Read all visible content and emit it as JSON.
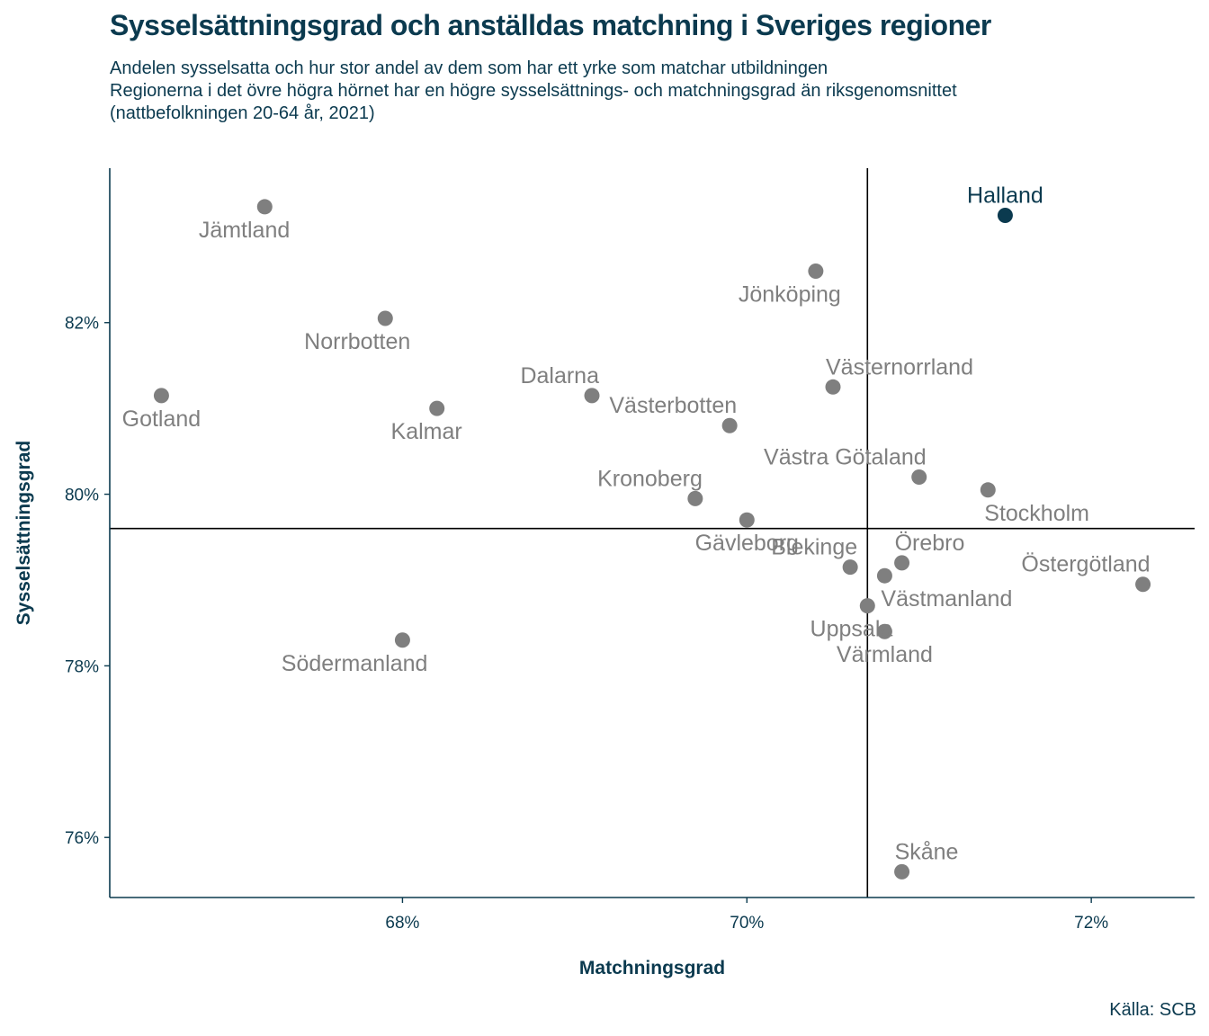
{
  "header": {
    "title": "Sysselsättningsgrad och anställdas matchning i Sveriges regioner",
    "subtitle_lines": [
      "Andelen sysselsatta och hur stor andel av dem som har ett yrke som matchar utbildningen",
      "Regionerna i det övre högra hörnet har en högre sysselsättnings- och matchningsgrad än riksgenomsnittet",
      "(nattbefolkningen 20-64 år, 2021)"
    ]
  },
  "caption": "Källa: SCB",
  "colors": {
    "text": "#0b3a4f",
    "point": "#7f7f7f",
    "highlight": "#0b3a4f",
    "reference_line": "#000000"
  },
  "chart_data": {
    "type": "scatter",
    "title": "Sysselsättningsgrad och anställdas matchning i Sveriges regioner",
    "xlabel": "Matchningsgrad",
    "ylabel": "Sysselsättningsgrad",
    "xlim": [
      66.3,
      72.6
    ],
    "ylim": [
      75.3,
      83.8
    ],
    "x_ticks": [
      68,
      70,
      72
    ],
    "y_ticks": [
      76,
      78,
      80,
      82
    ],
    "x_tick_labels": [
      "68%",
      "70%",
      "72%"
    ],
    "y_tick_labels": [
      "76%",
      "78%",
      "80%",
      "82%"
    ],
    "reference_lines": {
      "x": 70.7,
      "y": 79.6
    },
    "highlight": "Halland",
    "points": [
      {
        "name": "Halland",
        "x": 71.5,
        "y": 83.25,
        "label_pos": "above"
      },
      {
        "name": "Jämtland",
        "x": 67.2,
        "y": 83.35,
        "label_pos": "below-left"
      },
      {
        "name": "Jönköping",
        "x": 70.4,
        "y": 82.6,
        "label_pos": "below-left"
      },
      {
        "name": "Norrbotten",
        "x": 67.9,
        "y": 82.05,
        "label_pos": "below-left"
      },
      {
        "name": "Gotland",
        "x": 66.6,
        "y": 81.15,
        "label_pos": "below"
      },
      {
        "name": "Dalarna",
        "x": 69.1,
        "y": 81.15,
        "label_pos": "above-left"
      },
      {
        "name": "Västernorrland",
        "x": 70.5,
        "y": 81.25,
        "label_pos": "above-right"
      },
      {
        "name": "Kalmar",
        "x": 68.2,
        "y": 81.0,
        "label_pos": "below-left"
      },
      {
        "name": "Västerbotten",
        "x": 69.9,
        "y": 80.8,
        "label_pos": "above-left"
      },
      {
        "name": "Västra Götaland",
        "x": 71.0,
        "y": 80.2,
        "label_pos": "above-left"
      },
      {
        "name": "Stockholm",
        "x": 71.4,
        "y": 80.05,
        "label_pos": "below-right"
      },
      {
        "name": "Kronoberg",
        "x": 69.7,
        "y": 79.95,
        "label_pos": "above-left"
      },
      {
        "name": "Gävleborg",
        "x": 70.0,
        "y": 79.7,
        "label_pos": "below"
      },
      {
        "name": "Örebro",
        "x": 70.9,
        "y": 79.2,
        "label_pos": "above-right"
      },
      {
        "name": "Blekinge",
        "x": 70.6,
        "y": 79.15,
        "label_pos": "above-left"
      },
      {
        "name": "Västmanland",
        "x": 70.8,
        "y": 79.05,
        "label_pos": "below-right"
      },
      {
        "name": "Östergötland",
        "x": 72.3,
        "y": 78.95,
        "label_pos": "above-left"
      },
      {
        "name": "Uppsala",
        "x": 70.7,
        "y": 78.7,
        "label_pos": "below-left"
      },
      {
        "name": "Värmland",
        "x": 70.8,
        "y": 78.4,
        "label_pos": "below"
      },
      {
        "name": "Södermanland",
        "x": 68.0,
        "y": 78.3,
        "label_pos": "below-left"
      },
      {
        "name": "Skåne",
        "x": 70.9,
        "y": 75.6,
        "label_pos": "above-right"
      }
    ]
  }
}
